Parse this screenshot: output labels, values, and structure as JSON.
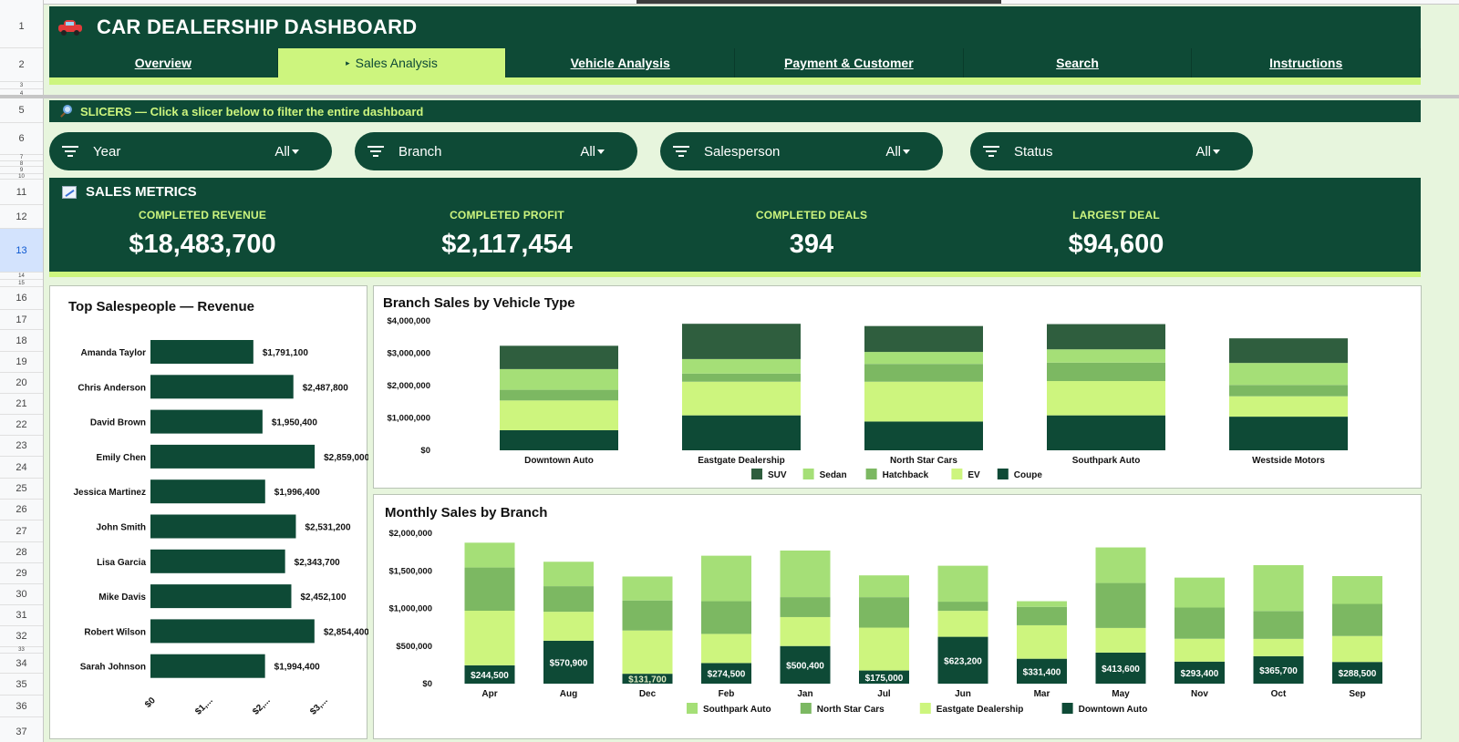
{
  "title": "CAR DEALERSHIP DASHBOARD",
  "row_numbers": [
    "1",
    "2",
    "3",
    "4",
    "5",
    "6",
    "7",
    "8",
    "9",
    "10",
    "11",
    "12",
    "13",
    "14",
    "15",
    "16",
    "17",
    "18",
    "19",
    "20",
    "21",
    "22",
    "23",
    "24",
    "25",
    "26",
    "27",
    "28",
    "29",
    "30",
    "31",
    "32",
    "33",
    "34",
    "35",
    "36",
    "37"
  ],
  "tabs": [
    {
      "label": "Overview",
      "active": false
    },
    {
      "label": "Sales Analysis",
      "active": true
    },
    {
      "label": "Vehicle Analysis",
      "active": false
    },
    {
      "label": "Payment & Customer",
      "active": false
    },
    {
      "label": "Search",
      "active": false
    },
    {
      "label": "Instructions",
      "active": false
    }
  ],
  "slicers": {
    "header": "SLICERS — Click a slicer below to filter the entire dashboard",
    "items": [
      {
        "label": "Year",
        "value": "All"
      },
      {
        "label": "Branch",
        "value": "All"
      },
      {
        "label": "Salesperson",
        "value": "All"
      },
      {
        "label": "Status",
        "value": "All"
      }
    ]
  },
  "metrics": {
    "title": "SALES METRICS",
    "items": [
      {
        "label": "COMPLETED REVENUE",
        "value": "$18,483,700"
      },
      {
        "label": "COMPLETED PROFIT",
        "value": "$2,117,454"
      },
      {
        "label": "COMPLETED DEALS",
        "value": "394"
      },
      {
        "label": "LARGEST DEAL",
        "value": "$94,600"
      }
    ]
  },
  "colors": {
    "dark": "#0e4a36",
    "lime": "#cdf57e",
    "bg": "#e7f5dd",
    "suv": "#2f5e3e",
    "sedan": "#a5df77",
    "hatchback": "#7cb862",
    "ev": "#cdf57e",
    "coupe": "#0e4a36"
  },
  "chart_data": [
    {
      "type": "bar",
      "orientation": "horizontal",
      "title": "Top Salespeople — Revenue",
      "categories": [
        "Amanda Taylor",
        "Chris Anderson",
        "David Brown",
        "Emily Chen",
        "Jessica Martinez",
        "John Smith",
        "Lisa Garcia",
        "Mike Davis",
        "Robert Wilson",
        "Sarah Johnson"
      ],
      "values": [
        1791100,
        2487800,
        1950400,
        2859000,
        1996400,
        2531200,
        2343700,
        2452100,
        2854400,
        1994400
      ],
      "data_labels": [
        "$1,791,100",
        "$2,487,800",
        "$1,950,400",
        "$2,859,000",
        "$1,996,400",
        "$2,531,200",
        "$2,343,700",
        "$2,452,100",
        "$2,854,400",
        "$1,994,400"
      ],
      "x_ticks": [
        "$0",
        "$1,...",
        "$2,...",
        "$3,..."
      ],
      "xlim": [
        0,
        3000000
      ]
    },
    {
      "type": "bar",
      "stacked": true,
      "title": "Branch Sales by Vehicle Type",
      "categories": [
        "Downtown Auto",
        "Eastgate Dealership",
        "North Star Cars",
        "Southpark Auto",
        "Westside Motors"
      ],
      "y_ticks": [
        "$0",
        "$1,000,000",
        "$2,000,000",
        "$3,000,000",
        "$4,000,000"
      ],
      "ylim": [
        0,
        4000000
      ],
      "legend_position": "bottom",
      "series": [
        {
          "name": "Coupe",
          "color": "#0e4a36",
          "values": [
            620000,
            1080000,
            890000,
            1080000,
            1040000
          ]
        },
        {
          "name": "EV",
          "color": "#cdf57e",
          "values": [
            920000,
            1040000,
            1230000,
            1060000,
            630000
          ]
        },
        {
          "name": "Hatchback",
          "color": "#7cb862",
          "values": [
            330000,
            250000,
            550000,
            570000,
            350000
          ]
        },
        {
          "name": "Sedan",
          "color": "#a5df77",
          "values": [
            640000,
            450000,
            370000,
            410000,
            680000
          ]
        },
        {
          "name": "SUV",
          "color": "#2f5e3e",
          "values": [
            720000,
            1090000,
            800000,
            780000,
            760000
          ]
        }
      ],
      "legend_order": [
        "SUV",
        "Sedan",
        "Hatchback",
        "EV",
        "Coupe"
      ]
    },
    {
      "type": "bar",
      "stacked": true,
      "title": "Monthly Sales by Branch",
      "categories": [
        "Apr",
        "Aug",
        "Dec",
        "Feb",
        "Jan",
        "Jul",
        "Jun",
        "Mar",
        "May",
        "Nov",
        "Oct",
        "Sep"
      ],
      "y_ticks": [
        "$0",
        "$500,000",
        "$1,000,000",
        "$1,500,000",
        "$2,000,000"
      ],
      "ylim": [
        0,
        2000000
      ],
      "legend_position": "bottom",
      "series": [
        {
          "name": "Downtown Auto",
          "color": "#0e4a36",
          "values": [
            244500,
            570900,
            131700,
            274500,
            500400,
            175000,
            623200,
            331400,
            413600,
            293400,
            365700,
            288500
          ],
          "labels": [
            "$244,500",
            "$570,900",
            "$131,700",
            "$274,500",
            "$500,400",
            "$175,000",
            "$623,200",
            "$331,400",
            "$413,600",
            "$293,400",
            "$365,700",
            "$288,500"
          ]
        },
        {
          "name": "Eastgate Dealership",
          "color": "#cdf57e",
          "values": [
            725000,
            385000,
            575000,
            387000,
            385000,
            570000,
            345000,
            445000,
            327000,
            304000,
            230000,
            345000
          ]
        },
        {
          "name": "North Star Cars",
          "color": "#7cb862",
          "values": [
            575000,
            340000,
            400000,
            435000,
            265000,
            405000,
            122000,
            245000,
            598000,
            415000,
            370000,
            427000
          ]
        },
        {
          "name": "Southpark Auto",
          "color": "#a5df77",
          "values": [
            330000,
            325000,
            318000,
            605000,
            620000,
            290000,
            478000,
            75000,
            473000,
            398000,
            610000,
            370000
          ]
        }
      ],
      "legend_order": [
        "Southpark Auto",
        "North Star Cars",
        "Eastgate Dealership",
        "Downtown Auto"
      ]
    }
  ]
}
